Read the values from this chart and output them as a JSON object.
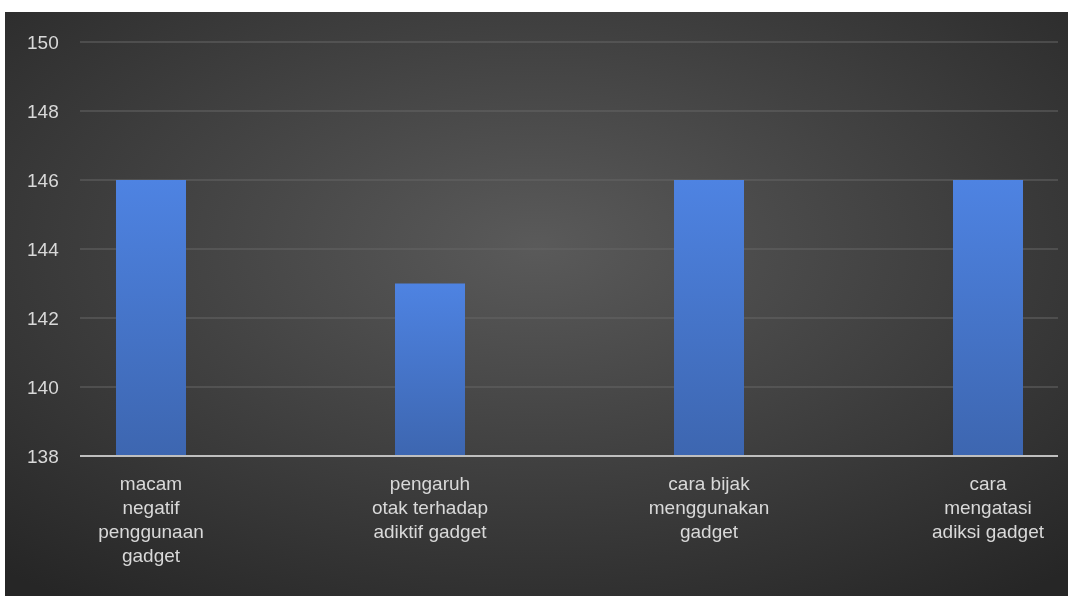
{
  "chart_data": {
    "type": "bar",
    "categories": [
      "macam\nnegatif\npenggunaan\ngadget",
      "pengaruh\notak terhadap\nadiktif gadget",
      "cara bijak\nmenggunakan\ngadget",
      "cara\nmengatasi\nadiksi gadget"
    ],
    "values": [
      146,
      143,
      146,
      146
    ],
    "color": "#4472c4",
    "ylim": [
      138,
      150
    ],
    "yticks": [
      138,
      140,
      142,
      144,
      146,
      148,
      150
    ],
    "grid": "y"
  }
}
